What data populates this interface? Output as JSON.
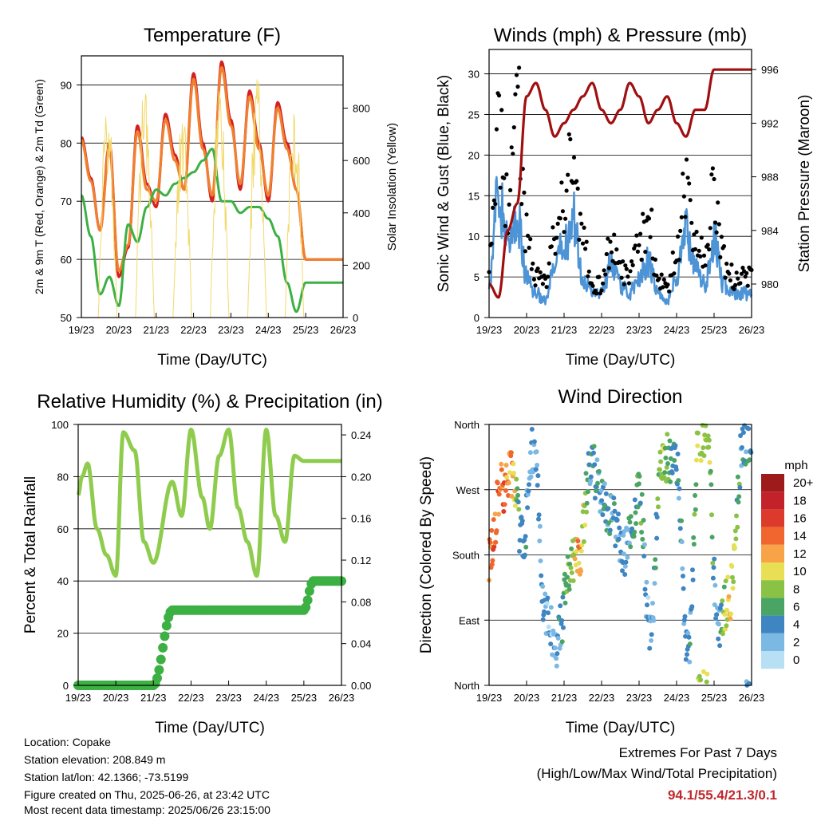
{
  "x_ticks": [
    "19/23",
    "20/23",
    "21/23",
    "22/23",
    "23/23",
    "24/23",
    "25/23",
    "26/23"
  ],
  "chart_data": [
    {
      "type": "line",
      "title": "Temperature (F)",
      "xlabel": "Time (Day/UTC)",
      "ylabel": "2m & 9m T (Red, Orange) & 2m Td (Green)",
      "y2label": "Solar Insolation (Yellow)",
      "ylim": [
        50,
        95
      ],
      "yticks": [
        50,
        60,
        70,
        80,
        90
      ],
      "y2lim": [
        0,
        1000
      ],
      "y2ticks": [
        0,
        200,
        400,
        600,
        800
      ],
      "grid": true,
      "x": [
        0,
        0.25,
        0.5,
        0.75,
        1,
        1.25,
        1.5,
        1.75,
        2,
        2.25,
        2.5,
        2.75,
        3,
        3.25,
        3.5,
        3.75,
        4,
        4.25,
        4.5,
        4.75,
        5,
        5.25,
        5.5,
        5.75,
        6,
        6.25,
        6.5,
        6.75,
        7
      ],
      "series": [
        {
          "name": "2m T",
          "color": "#d42020",
          "values": [
            81,
            74,
            65,
            80,
            57,
            62,
            83,
            73,
            69,
            85,
            78,
            72,
            92,
            80,
            70,
            94,
            84,
            72,
            89,
            80,
            70,
            87,
            80,
            72,
            60,
            60,
            60,
            60,
            60
          ]
        },
        {
          "name": "9m T",
          "color": "#f08030",
          "values": [
            80.5,
            73.5,
            65,
            79,
            58,
            62.5,
            82,
            72,
            70,
            84,
            77,
            72,
            91,
            79,
            71,
            93,
            83,
            73,
            88,
            79,
            71,
            86,
            79,
            72,
            60,
            60,
            60,
            60,
            60
          ]
        },
        {
          "name": "2m Td",
          "color": "#3cb043",
          "values": [
            71,
            64,
            54,
            57,
            52,
            66,
            63,
            69,
            72,
            71,
            73,
            74,
            75,
            77,
            79,
            70,
            70,
            68,
            69,
            69,
            67,
            64,
            56,
            51,
            56,
            56,
            56,
            56,
            56
          ]
        },
        {
          "name": "Solar Insolation",
          "color": "#f2d96b",
          "axis": "y2",
          "values": [
            0,
            0,
            900,
            0,
            0,
            950,
            0,
            0,
            780,
            0,
            0,
            830,
            0,
            0,
            900,
            0,
            0,
            950,
            0,
            0,
            880,
            0,
            0,
            850,
            0,
            0,
            0,
            0,
            0
          ]
        }
      ]
    },
    {
      "type": "line",
      "title": "Winds (mph) & Pressure (mb)",
      "xlabel": "Time (Day/UTC)",
      "ylabel": "Sonic Wind & Gust (Blue, Black)",
      "y2label": "Station Pressure (Maroon)",
      "ylim": [
        0,
        33
      ],
      "yticks": [
        0,
        5,
        10,
        15,
        20,
        25,
        30
      ],
      "y2lim": [
        977.5,
        997.5
      ],
      "y2ticks": [
        980,
        984,
        988,
        992,
        996
      ],
      "grid": true,
      "x": [
        0,
        0.25,
        0.5,
        0.75,
        1,
        1.25,
        1.5,
        1.75,
        2,
        2.25,
        2.5,
        2.75,
        3,
        3.25,
        3.5,
        3.75,
        4,
        4.25,
        4.5,
        4.75,
        5,
        5.25,
        5.5,
        5.75,
        6,
        6.25,
        6.5,
        6.75,
        7
      ],
      "series": [
        {
          "name": "Sonic Wind",
          "color": "#4d94d6",
          "values": [
            5,
            15,
            9,
            12,
            5,
            3,
            2,
            6,
            9,
            12,
            5,
            3,
            3,
            7,
            4,
            3,
            5,
            7,
            3,
            2,
            5,
            11,
            6,
            4,
            10,
            4,
            3,
            3,
            3
          ]
        },
        {
          "name": "Gust",
          "color": "#000000",
          "values": [
            8,
            22,
            14,
            25,
            11,
            5,
            4,
            10,
            15,
            20,
            9,
            4,
            4,
            9,
            6,
            5,
            9,
            12,
            5,
            4,
            8,
            16,
            10,
            7,
            16,
            7,
            5,
            5,
            5
          ]
        },
        {
          "name": "Station Pressure",
          "color": "#a01010",
          "axis": "y2",
          "values": [
            980,
            979,
            984,
            986,
            994,
            995,
            993,
            991,
            992,
            993,
            994,
            995,
            993,
            992,
            993,
            995,
            994,
            992,
            993,
            994,
            992,
            991,
            993,
            993,
            996,
            996,
            996,
            996,
            996
          ]
        }
      ]
    },
    {
      "type": "line",
      "title": "Relative Humidity (%) & Precipitation (in)",
      "xlabel": "Time (Day/UTC)",
      "ylabel": "Percent & Total Rainfall",
      "ylim": [
        0,
        100
      ],
      "yticks": [
        0,
        20,
        40,
        60,
        80,
        100
      ],
      "y2lim": [
        0,
        0.25
      ],
      "y2ticks": [
        "0.00",
        "0.04",
        "0.08",
        "0.12",
        "0.16",
        "0.20",
        "0.24"
      ],
      "grid": true,
      "x": [
        0,
        0.1,
        0.25,
        0.5,
        0.75,
        1,
        1.2,
        1.5,
        1.75,
        2,
        2.5,
        2.75,
        3,
        3.3,
        3.5,
        3.75,
        4,
        4.25,
        4.5,
        4.75,
        5,
        5.25,
        5.5,
        5.75,
        6,
        6.25,
        6.5,
        6.75,
        7
      ],
      "series": [
        {
          "name": "Relative Humidity",
          "color": "#8fcc4e",
          "values": [
            73,
            80,
            85,
            60,
            50,
            42,
            97,
            90,
            55,
            47,
            78,
            65,
            98,
            72,
            60,
            88,
            98,
            68,
            55,
            42,
            98,
            65,
            55,
            88,
            86,
            86,
            86,
            86,
            86
          ]
        },
        {
          "name": "Total Precipitation",
          "color": "#3cb043",
          "axis": "y2",
          "values": [
            0,
            0,
            0,
            0,
            0,
            0,
            0,
            0,
            0,
            0,
            0.072,
            0.072,
            0.072,
            0.072,
            0.072,
            0.072,
            0.072,
            0.072,
            0.072,
            0.072,
            0.072,
            0.072,
            0.072,
            0.072,
            0.072,
            0.1,
            0.1,
            0.1,
            0.1
          ]
        }
      ]
    },
    {
      "type": "scatter",
      "title": "Wind Direction",
      "xlabel": "Time (Day/UTC)",
      "ylabel": "Direction (Colored By Speed)",
      "yticks": [
        "North",
        "East",
        "South",
        "West",
        "North"
      ],
      "ylim": [
        0,
        360
      ],
      "grid": true,
      "colorbar": {
        "title": "mph",
        "labels": [
          "20+",
          "18",
          "16",
          "14",
          "12",
          "10",
          "8",
          "6",
          "4",
          "2",
          "0"
        ],
        "colors": [
          "#9e1b1b",
          "#c4222a",
          "#dc3a2a",
          "#f0662e",
          "#f8a347",
          "#e8df55",
          "#8ac246",
          "#4aa564",
          "#3f85c2",
          "#7cb8e4",
          "#b8e0f5"
        ]
      },
      "x": [
        0.05,
        0.3,
        0.6,
        0.9,
        1.2,
        1.5,
        1.8,
        2.2,
        2.4,
        2.7,
        3.3,
        3.6,
        4.0,
        4.3,
        4.6,
        5.0,
        5.3,
        5.6,
        5.8,
        6.1,
        6.4,
        6.8
      ],
      "series": [
        {
          "name": "Direction",
          "values": [
            180,
            270,
            290,
            200,
            330,
            100,
            60,
            170,
            180,
            300,
            230,
            180,
            260,
            70,
            320,
            300,
            50,
            340,
            350,
            80,
            120,
            340
          ]
        },
        {
          "name": "Speed",
          "values": [
            14,
            14,
            12,
            4,
            3,
            2,
            3,
            8,
            12,
            4,
            4,
            3,
            6,
            2,
            8,
            5,
            3,
            9,
            8,
            4,
            10,
            4
          ]
        }
      ]
    }
  ],
  "footer": {
    "location": "Location: Copake",
    "elevation": "Station elevation: 208.849 m",
    "latlon": "Station lat/lon: 42.1366; -73.5199",
    "created": "Figure created on Thu, 2025-06-26, at 23:42 UTC",
    "recent": "Most recent data timestamp: 2025/06/26 23:15:00"
  },
  "extremes": {
    "title": "Extremes For Past 7 Days",
    "subtitle": "(High/Low/Max Wind/Total Precipitation)",
    "values": "94.1/55.4/21.3/0.1",
    "color": "#c0282d"
  }
}
